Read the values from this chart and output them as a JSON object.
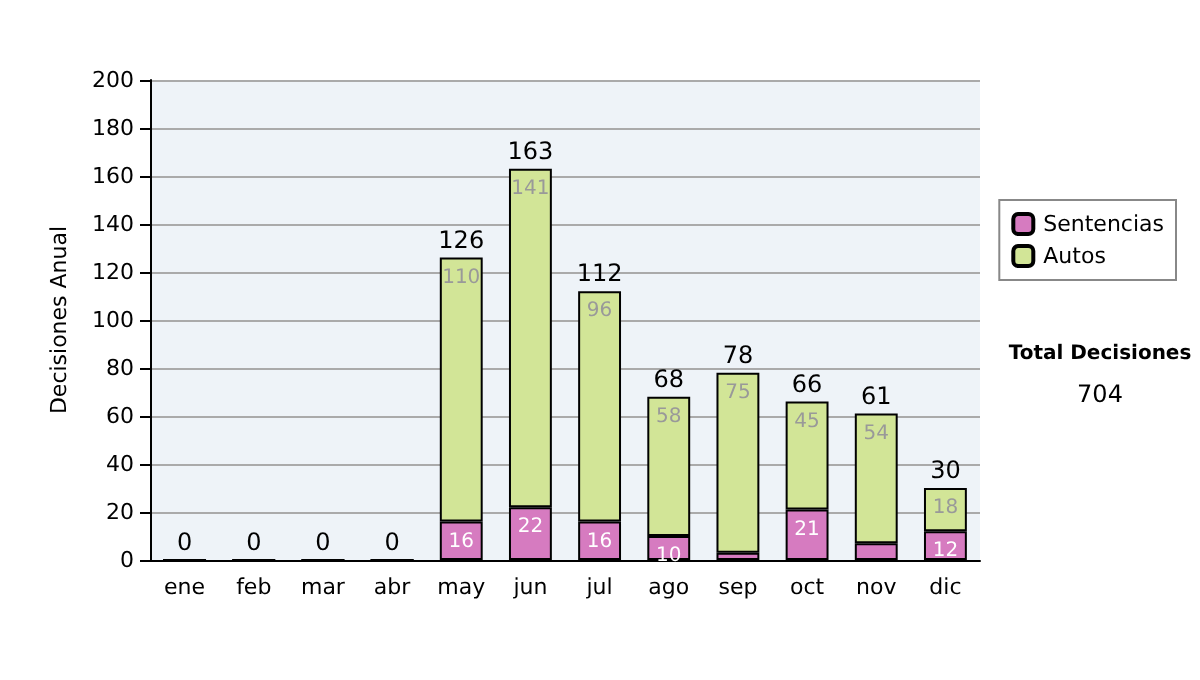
{
  "chart_data": {
    "type": "bar",
    "stacked": true,
    "ylabel": "Decisiones Anual",
    "categories": [
      "ene",
      "feb",
      "mar",
      "abr",
      "may",
      "jun",
      "jul",
      "ago",
      "sep",
      "oct",
      "nov",
      "dic"
    ],
    "series": [
      {
        "name": "Sentencias",
        "color": "#d67bc0",
        "values": [
          0,
          0,
          0,
          0,
          16,
          22,
          16,
          10,
          3,
          21,
          7,
          12
        ],
        "value_labels": [
          null,
          null,
          null,
          null,
          "16",
          "22",
          "16",
          "10",
          null,
          "21",
          null,
          "12"
        ]
      },
      {
        "name": "Autos",
        "color": "#d2e597",
        "values": [
          0,
          0,
          0,
          0,
          110,
          141,
          96,
          58,
          75,
          45,
          54,
          18
        ],
        "value_labels": [
          null,
          null,
          null,
          null,
          "110",
          "141",
          "96",
          "58",
          "75",
          "45",
          "54",
          "18"
        ]
      }
    ],
    "totals": [
      "0",
      "0",
      "0",
      "0",
      "126",
      "163",
      "112",
      "68",
      "78",
      "66",
      "61",
      "30"
    ],
    "ylim": [
      0,
      200
    ],
    "yticks": [
      0,
      20,
      40,
      60,
      80,
      100,
      120,
      140,
      160,
      180,
      200
    ],
    "grid": "y",
    "legend": "right",
    "annotations": [
      "Total Decisiones",
      "704"
    ]
  }
}
